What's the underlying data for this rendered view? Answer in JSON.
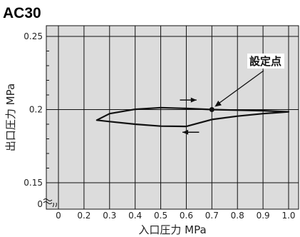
{
  "chart_data": {
    "type": "line",
    "title": "AC30",
    "xlabel": "入口圧力 MPa",
    "ylabel": "出口圧力 MPa",
    "xlim": [
      0.1,
      1.05
    ],
    "ylim": [
      0.14,
      0.26
    ],
    "x_ticks": [
      "0",
      "0.2",
      "0.3",
      "0.4",
      "0.5",
      "0.6",
      "0.7",
      "0.8",
      "0.9",
      "1.0"
    ],
    "y_ticks": [
      "0.25",
      "0.2",
      "0.15",
      "0"
    ],
    "axis_break": true,
    "grid": true,
    "background_color": "#dcdcdc",
    "line_color": "#111111",
    "series": [
      {
        "x": [
          0.7,
          0.8,
          0.9,
          1.0,
          0.9,
          0.8,
          0.7,
          0.6,
          0.5,
          0.4,
          0.3,
          0.25,
          0.3,
          0.4,
          0.5,
          0.6,
          0.7
        ],
        "y": [
          0.2,
          0.1996,
          0.1992,
          0.1985,
          0.1972,
          0.1955,
          0.1932,
          0.1885,
          0.1887,
          0.19,
          0.1918,
          0.1928,
          0.1972,
          0.2002,
          0.2013,
          0.2008,
          0.2
        ]
      }
    ],
    "set_point": {
      "x": 0.7,
      "y": 0.2,
      "label": "設定点"
    },
    "direction_arrows": [
      "right",
      "left"
    ]
  }
}
